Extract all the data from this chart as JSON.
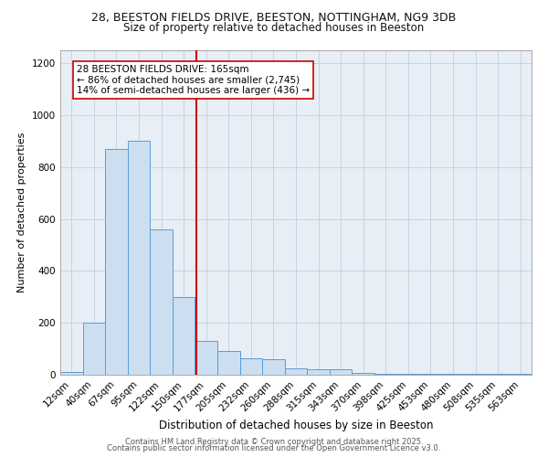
{
  "title_line1": "28, BEESTON FIELDS DRIVE, BEESTON, NOTTINGHAM, NG9 3DB",
  "title_line2": "Size of property relative to detached houses in Beeston",
  "xlabel": "Distribution of detached houses by size in Beeston",
  "ylabel": "Number of detached properties",
  "bar_labels": [
    "12sqm",
    "40sqm",
    "67sqm",
    "95sqm",
    "122sqm",
    "150sqm",
    "177sqm",
    "205sqm",
    "232sqm",
    "260sqm",
    "288sqm",
    "315sqm",
    "343sqm",
    "370sqm",
    "398sqm",
    "425sqm",
    "453sqm",
    "480sqm",
    "508sqm",
    "535sqm",
    "563sqm"
  ],
  "bar_values": [
    10,
    200,
    870,
    900,
    560,
    300,
    130,
    90,
    65,
    60,
    25,
    20,
    20,
    8,
    3,
    3,
    2,
    2,
    2,
    2,
    2
  ],
  "bar_color": "#ccdff0",
  "bar_edge_color": "#5b9bd5",
  "vline_x": 5.55,
  "vline_color": "#cc0000",
  "annotation_text": "28 BEESTON FIELDS DRIVE: 165sqm\n← 86% of detached houses are smaller (2,745)\n14% of semi-detached houses are larger (436) →",
  "annotation_box_color": "#ffffff",
  "annotation_box_edge": "#cc0000",
  "annotation_fontsize": 7.5,
  "ylim": [
    0,
    1250
  ],
  "yticks": [
    0,
    200,
    400,
    600,
    800,
    1000,
    1200
  ],
  "background_color": "#e8eef5",
  "grid_color": "#c0cfe0",
  "footer_line1": "Contains HM Land Registry data © Crown copyright and database right 2025.",
  "footer_line2": "Contains public sector information licensed under the Open Government Licence v3.0.",
  "title_fontsize": 9,
  "subtitle_fontsize": 8.5,
  "ylabel_fontsize": 8,
  "xlabel_fontsize": 8.5,
  "tick_fontsize": 7.5,
  "footer_fontsize": 6
}
